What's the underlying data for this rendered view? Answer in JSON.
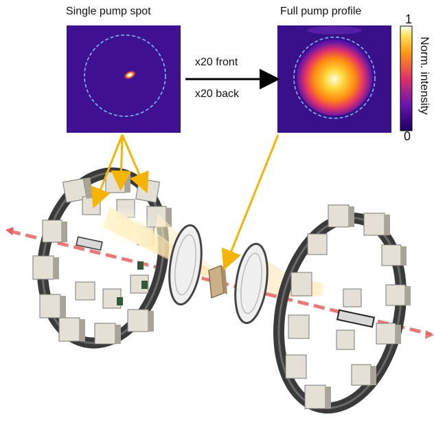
{
  "left_panel": {
    "title": "Single pump spot"
  },
  "right_panel": {
    "title": "Full pump profile"
  },
  "arrow": {
    "top_label": "x20 front",
    "bottom_label": "x20 back"
  },
  "colorbar": {
    "label": "Norm. intensity",
    "max_label": "1",
    "min_label": "0"
  },
  "icons": [
    "pump-module-icon",
    "lens-icon",
    "crystal-icon",
    "beam-arrow-icon"
  ],
  "colors": {
    "panel_background": "#3a0f8a",
    "dashed_circle": "#7fb8ff",
    "arrow_yellow": "#f5b400",
    "beam_red": "#e86060",
    "wheel_dark": "#3a3a3a",
    "module_light": "#e4e0d6"
  }
}
